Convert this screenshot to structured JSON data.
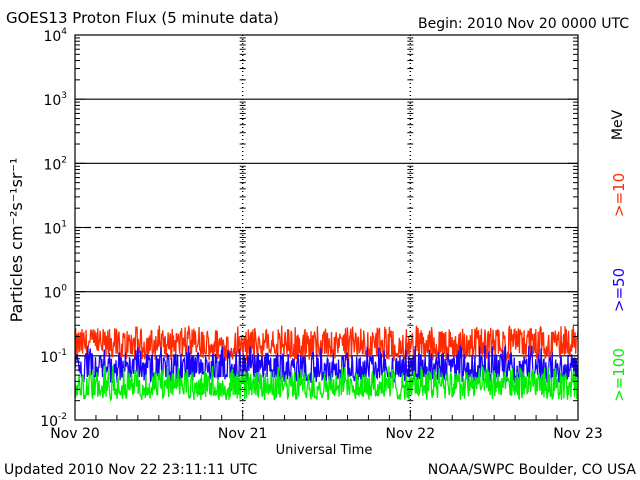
{
  "chart_data": {
    "type": "line",
    "title": "GOES13 Proton Flux (5 minute data)",
    "begin_label": "Begin: 2010 Nov 20 0000 UTC",
    "xlabel": "Universal Time",
    "ylabel": "Particles cm⁻²s⁻¹sr⁻¹",
    "y_scale": "log",
    "ylim": [
      0.01,
      10000
    ],
    "y_ticks": [
      {
        "value": 0.01,
        "base": "10",
        "exp": "-2"
      },
      {
        "value": 0.1,
        "base": "10",
        "exp": "-1"
      },
      {
        "value": 1,
        "base": "10",
        "exp": "0"
      },
      {
        "value": 10,
        "base": "10",
        "exp": "1"
      },
      {
        "value": 100,
        "base": "10",
        "exp": "2"
      },
      {
        "value": 1000,
        "base": "10",
        "exp": "3"
      },
      {
        "value": 10000,
        "base": "10",
        "exp": "4"
      }
    ],
    "x_ticks": [
      "Nov 20",
      "Nov 21",
      "Nov 22",
      "Nov 23"
    ],
    "xlim_days": [
      0,
      3
    ],
    "series": [
      {
        "name": ">=10",
        "color": "#ff2a00",
        "base": 0.15,
        "spread": 0.32,
        "spikes": [
          0.22,
          0.3
        ]
      },
      {
        "name": ">=50",
        "color": "#1a00ff",
        "base": 0.065,
        "spread": 0.3,
        "spikes": [
          0.09,
          0.15
        ]
      },
      {
        "name": ">=100",
        "color": "#00ee00",
        "base": 0.034,
        "spread": 0.28,
        "spikes": [
          0.05,
          0.07
        ]
      }
    ],
    "units_label": "MeV",
    "reference_lines": [
      {
        "value": 10,
        "style": "dashed"
      },
      {
        "value": 100,
        "style": "solid"
      },
      {
        "value": 1000,
        "style": "solid"
      },
      {
        "value": 1,
        "style": "solid"
      },
      {
        "value": 0.1,
        "style": "solid"
      }
    ]
  },
  "footer": {
    "updated": "Updated 2010 Nov 22 23:11:11 UTC",
    "credit": "NOAA/SWPC Boulder, CO USA"
  }
}
